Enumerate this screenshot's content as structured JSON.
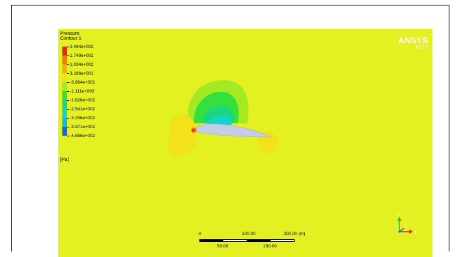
{
  "legend": {
    "title_line1": "Pressure",
    "title_line2": "Contour 1",
    "levels": [
      "2.464e+002",
      "1.749e+002",
      "1.034e+002",
      "3.186e+001",
      "-3.964e+001",
      "-1.111e+002",
      "-1.826e+002",
      "-2.541e+002",
      "-3.256e+002",
      "-3.971e+002",
      "-4.686e+002"
    ],
    "colors": [
      "#e8281b",
      "#f07c10",
      "#f2ae12",
      "#f3e11a",
      "#a4ea22",
      "#33e040",
      "#1ad584",
      "#13d6c4",
      "#12b8ed",
      "#1164ec"
    ],
    "unit": "[Pa]"
  },
  "branding": {
    "name": "ANSYS",
    "version": "R17.0"
  },
  "scale_bar": {
    "top_labels": [
      "0",
      "100.00",
      "200.00  (m)"
    ],
    "bottom_labels": [
      "50.00",
      "150.00"
    ]
  },
  "triad": {
    "y_axis": "Y",
    "x_axis": "X",
    "z_axis": "Z"
  },
  "colors": {
    "background_field": "#e3f021",
    "airfoil": "#c5cde6",
    "stagnation": "#e8281b"
  }
}
